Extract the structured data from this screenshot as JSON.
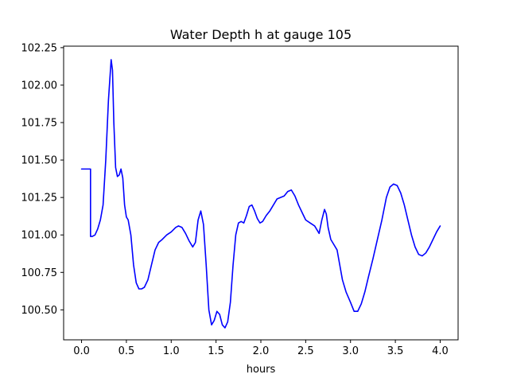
{
  "chart_data": {
    "type": "line",
    "title": "Water Depth h at gauge 105",
    "xlabel": "hours",
    "ylabel": "",
    "xlim": [
      -0.2,
      4.2
    ],
    "ylim": [
      100.3,
      102.26
    ],
    "xticks": [
      0.0,
      0.5,
      1.0,
      1.5,
      2.0,
      2.5,
      3.0,
      3.5,
      4.0
    ],
    "xtick_labels": [
      "0.0",
      "0.5",
      "1.0",
      "1.5",
      "2.0",
      "2.5",
      "3.0",
      "3.5",
      "4.0"
    ],
    "yticks": [
      100.5,
      100.75,
      101.0,
      101.25,
      101.5,
      101.75,
      102.0,
      102.25
    ],
    "ytick_labels": [
      "100.50",
      "100.75",
      "101.00",
      "101.25",
      "101.50",
      "101.75",
      "102.00",
      "102.25"
    ],
    "grid": false,
    "legend": "none",
    "series": [
      {
        "color": "#0000ff",
        "x": [
          0.0,
          0.1,
          0.1,
          0.12,
          0.15,
          0.18,
          0.21,
          0.24,
          0.27,
          0.3,
          0.33,
          0.345,
          0.36,
          0.38,
          0.4,
          0.42,
          0.44,
          0.46,
          0.48,
          0.5,
          0.52,
          0.55,
          0.58,
          0.61,
          0.64,
          0.67,
          0.7,
          0.74,
          0.78,
          0.82,
          0.86,
          0.9,
          0.95,
          1.0,
          1.05,
          1.08,
          1.12,
          1.16,
          1.2,
          1.24,
          1.27,
          1.3,
          1.33,
          1.36,
          1.39,
          1.42,
          1.45,
          1.48,
          1.51,
          1.54,
          1.57,
          1.6,
          1.63,
          1.66,
          1.69,
          1.72,
          1.75,
          1.78,
          1.81,
          1.84,
          1.87,
          1.9,
          1.93,
          1.96,
          1.99,
          2.02,
          2.06,
          2.1,
          2.14,
          2.18,
          2.22,
          2.26,
          2.3,
          2.34,
          2.38,
          2.42,
          2.46,
          2.5,
          2.55,
          2.6,
          2.65,
          2.68,
          2.71,
          2.73,
          2.75,
          2.78,
          2.81,
          2.85,
          2.88,
          2.91,
          2.95,
          3.0,
          3.04,
          3.08,
          3.12,
          3.16,
          3.2,
          3.25,
          3.3,
          3.35,
          3.4,
          3.44,
          3.48,
          3.52,
          3.56,
          3.6,
          3.64,
          3.68,
          3.72,
          3.76,
          3.8,
          3.84,
          3.88,
          3.92,
          3.96,
          4.0
        ],
        "y": [
          101.44,
          101.44,
          100.99,
          100.99,
          101.0,
          101.04,
          101.1,
          101.2,
          101.5,
          101.9,
          102.17,
          102.1,
          101.75,
          101.45,
          101.39,
          101.4,
          101.44,
          101.38,
          101.2,
          101.12,
          101.1,
          101.0,
          100.8,
          100.68,
          100.64,
          100.64,
          100.65,
          100.7,
          100.8,
          100.9,
          100.95,
          100.97,
          101.0,
          101.02,
          101.05,
          101.06,
          101.05,
          101.01,
          100.96,
          100.92,
          100.95,
          101.1,
          101.16,
          101.07,
          100.8,
          100.5,
          100.4,
          100.43,
          100.49,
          100.47,
          100.4,
          100.38,
          100.42,
          100.55,
          100.8,
          101.0,
          101.08,
          101.09,
          101.08,
          101.13,
          101.19,
          101.2,
          101.16,
          101.11,
          101.08,
          101.09,
          101.13,
          101.16,
          101.2,
          101.24,
          101.25,
          101.26,
          101.29,
          101.3,
          101.26,
          101.2,
          101.15,
          101.1,
          101.08,
          101.06,
          101.01,
          101.1,
          101.17,
          101.14,
          101.05,
          100.97,
          100.94,
          100.9,
          100.8,
          100.7,
          100.62,
          100.55,
          100.49,
          100.49,
          100.54,
          100.62,
          100.72,
          100.84,
          100.97,
          101.1,
          101.25,
          101.32,
          101.34,
          101.33,
          101.28,
          101.2,
          101.1,
          101.0,
          100.92,
          100.87,
          100.86,
          100.88,
          100.92,
          100.97,
          101.02,
          101.06
        ]
      }
    ]
  }
}
